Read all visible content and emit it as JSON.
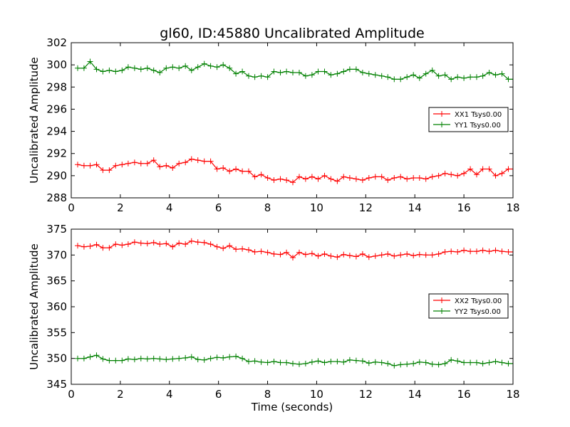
{
  "figure": {
    "title": "gl60, ID:45880 Uncalibrated Amplitude",
    "xlabel": "Time (seconds)"
  },
  "chart_data": [
    {
      "type": "line",
      "title": "gl60, ID:45880 Uncalibrated Amplitude",
      "xlabel": "",
      "ylabel": "Uncalibrated Amplitude",
      "xlim": [
        0,
        18
      ],
      "ylim": [
        288,
        302
      ],
      "xticks": [
        0,
        2,
        4,
        6,
        8,
        10,
        12,
        14,
        16,
        18
      ],
      "yticks": [
        288,
        290,
        292,
        294,
        296,
        298,
        300,
        302
      ],
      "grid": false,
      "legend": "center-right",
      "x": [
        0.26,
        0.52,
        0.77,
        1.03,
        1.29,
        1.55,
        1.81,
        2.07,
        2.32,
        2.58,
        2.84,
        3.1,
        3.36,
        3.61,
        3.87,
        4.13,
        4.39,
        4.65,
        4.9,
        5.16,
        5.42,
        5.68,
        5.94,
        6.19,
        6.45,
        6.71,
        6.97,
        7.23,
        7.48,
        7.74,
        8.0,
        8.26,
        8.52,
        8.77,
        9.03,
        9.29,
        9.55,
        9.81,
        10.06,
        10.32,
        10.58,
        10.84,
        11.1,
        11.35,
        11.61,
        11.87,
        12.13,
        12.39,
        12.65,
        12.9,
        13.16,
        13.42,
        13.68,
        13.94,
        14.19,
        14.45,
        14.71,
        14.97,
        15.23,
        15.48,
        15.74,
        16.0,
        16.26,
        16.52,
        16.77,
        17.03,
        17.29,
        17.55,
        17.81,
        18.06
      ],
      "series": [
        {
          "name": "XX1 Tsys0.00",
          "color": "#ff0000",
          "values": [
            291.0,
            290.9,
            290.9,
            291.0,
            290.5,
            290.5,
            290.9,
            291.0,
            291.1,
            291.2,
            291.1,
            291.1,
            291.4,
            290.8,
            290.9,
            290.7,
            291.1,
            291.2,
            291.5,
            291.4,
            291.3,
            291.3,
            290.6,
            290.7,
            290.4,
            290.6,
            290.4,
            290.4,
            289.9,
            290.1,
            289.8,
            289.6,
            289.7,
            289.6,
            289.4,
            289.9,
            289.7,
            289.9,
            289.7,
            290.0,
            289.7,
            289.5,
            289.9,
            289.8,
            289.7,
            289.6,
            289.8,
            289.9,
            289.9,
            289.6,
            289.8,
            289.9,
            289.7,
            289.8,
            289.8,
            289.7,
            289.9,
            290.0,
            290.2,
            290.1,
            290.0,
            290.2,
            290.6,
            290.1,
            290.6,
            290.6,
            290.0,
            290.2,
            290.6,
            290.6
          ],
          "values_alt_note": ""
        },
        {
          "name": "YY1 Tsys0.00",
          "color": "#008000",
          "values": [
            299.7,
            299.7,
            300.3,
            299.6,
            299.4,
            299.5,
            299.4,
            299.5,
            299.8,
            299.7,
            299.6,
            299.7,
            299.5,
            299.3,
            299.7,
            299.8,
            299.7,
            299.9,
            299.5,
            299.8,
            300.1,
            299.9,
            299.8,
            300.0,
            299.7,
            299.2,
            299.4,
            299.0,
            298.9,
            299.0,
            298.9,
            299.4,
            299.3,
            299.4,
            299.3,
            299.3,
            299.0,
            299.1,
            299.4,
            299.4,
            299.1,
            299.2,
            299.4,
            299.6,
            299.6,
            299.3,
            299.2,
            299.1,
            299.0,
            298.9,
            298.7,
            298.7,
            298.9,
            299.1,
            298.8,
            299.2,
            299.5,
            299.0,
            299.1,
            298.7,
            298.9,
            298.8,
            298.9,
            298.9,
            299.0,
            299.3,
            299.1,
            299.2,
            298.7,
            298.7
          ]
        }
      ]
    },
    {
      "type": "line",
      "title": "",
      "xlabel": "Time (seconds)",
      "ylabel": "Uncalibrated Amplitude",
      "xlim": [
        0,
        18
      ],
      "ylim": [
        345,
        375
      ],
      "xticks": [
        0,
        2,
        4,
        6,
        8,
        10,
        12,
        14,
        16,
        18
      ],
      "yticks": [
        345,
        350,
        355,
        360,
        365,
        370,
        375
      ],
      "grid": false,
      "legend": "center-right",
      "x": [
        0.26,
        0.52,
        0.77,
        1.03,
        1.29,
        1.55,
        1.81,
        2.07,
        2.32,
        2.58,
        2.84,
        3.1,
        3.36,
        3.61,
        3.87,
        4.13,
        4.39,
        4.65,
        4.9,
        5.16,
        5.42,
        5.68,
        5.94,
        6.19,
        6.45,
        6.71,
        6.97,
        7.23,
        7.48,
        7.74,
        8.0,
        8.26,
        8.52,
        8.77,
        9.03,
        9.29,
        9.55,
        9.81,
        10.06,
        10.32,
        10.58,
        10.84,
        11.1,
        11.35,
        11.61,
        11.87,
        12.13,
        12.39,
        12.65,
        12.9,
        13.16,
        13.42,
        13.68,
        13.94,
        14.19,
        14.45,
        14.71,
        14.97,
        15.23,
        15.48,
        15.74,
        16.0,
        16.26,
        16.52,
        16.77,
        17.03,
        17.29,
        17.55,
        17.81,
        18.06
      ],
      "series": [
        {
          "name": "XX2 Tsys0.00",
          "color": "#ff0000",
          "values": [
            371.8,
            371.6,
            371.7,
            372.0,
            371.4,
            371.4,
            372.1,
            371.9,
            372.1,
            372.5,
            372.3,
            372.2,
            372.4,
            372.1,
            372.2,
            371.6,
            372.3,
            372.1,
            372.7,
            372.5,
            372.4,
            372.1,
            371.6,
            371.3,
            371.8,
            371.1,
            371.2,
            371.0,
            370.6,
            370.7,
            370.5,
            370.2,
            370.1,
            370.5,
            369.5,
            370.5,
            370.1,
            370.3,
            369.8,
            370.2,
            369.8,
            369.6,
            370.1,
            369.9,
            369.7,
            370.2,
            369.6,
            369.8,
            370.0,
            370.2,
            369.8,
            370.0,
            370.2,
            369.9,
            370.1,
            370.0,
            370.0,
            370.2,
            370.6,
            370.7,
            370.6,
            370.9,
            370.7,
            370.7,
            370.9,
            370.7,
            370.9,
            370.7,
            370.6,
            370.6
          ]
        },
        {
          "name": "YY2 Tsys0.00",
          "color": "#008000",
          "values": [
            350.0,
            350.0,
            350.3,
            350.6,
            349.9,
            349.6,
            349.6,
            349.6,
            349.9,
            349.8,
            350.0,
            349.9,
            350.0,
            349.9,
            349.8,
            349.9,
            350.0,
            350.1,
            350.3,
            349.8,
            349.7,
            350.0,
            350.2,
            350.1,
            350.3,
            350.4,
            350.0,
            349.4,
            349.5,
            349.3,
            349.2,
            349.4,
            349.2,
            349.2,
            349.0,
            348.9,
            349.0,
            349.3,
            349.5,
            349.2,
            349.4,
            349.4,
            349.3,
            349.7,
            349.6,
            349.5,
            349.1,
            349.3,
            349.2,
            349.0,
            348.6,
            348.8,
            348.9,
            349.0,
            349.3,
            349.2,
            348.9,
            348.8,
            349.0,
            349.7,
            349.5,
            349.2,
            349.2,
            349.2,
            349.0,
            349.2,
            349.4,
            349.2,
            349.0,
            349.0
          ]
        }
      ]
    }
  ]
}
